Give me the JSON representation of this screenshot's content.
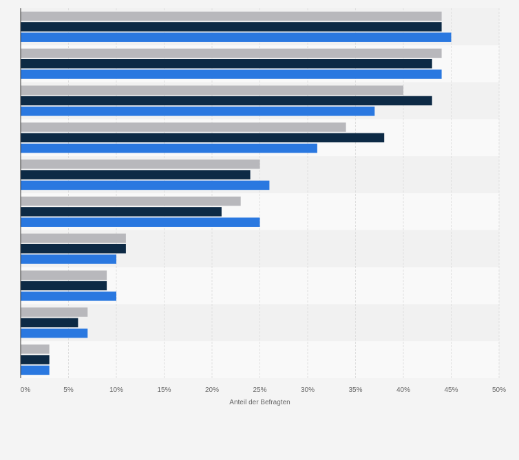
{
  "chart_data": {
    "type": "bar",
    "orientation": "horizontal",
    "xlabel": "Anteil der Befragten",
    "ylabel": "",
    "xlim": [
      0,
      50
    ],
    "x_ticks": [
      0,
      5,
      10,
      15,
      20,
      25,
      30,
      35,
      40,
      45,
      50
    ],
    "x_tick_labels": [
      "0%",
      "5%",
      "10%",
      "15%",
      "20%",
      "25%",
      "30%",
      "35%",
      "40%",
      "45%",
      "50%"
    ],
    "grid": true,
    "categories": [
      "",
      "",
      "",
      "",
      "",
      "",
      "",
      "",
      "",
      ""
    ],
    "series": [
      {
        "color": "#b8b8bc",
        "values": [
          44,
          44,
          40,
          34,
          25,
          23,
          11,
          9,
          7,
          3
        ]
      },
      {
        "color": "#0d2a45",
        "values": [
          44,
          43,
          43,
          38,
          24,
          21,
          11,
          9,
          6,
          3
        ]
      },
      {
        "color": "#2a78e0",
        "values": [
          45,
          44,
          37,
          31,
          26,
          25,
          10,
          10,
          7,
          3
        ]
      }
    ]
  }
}
